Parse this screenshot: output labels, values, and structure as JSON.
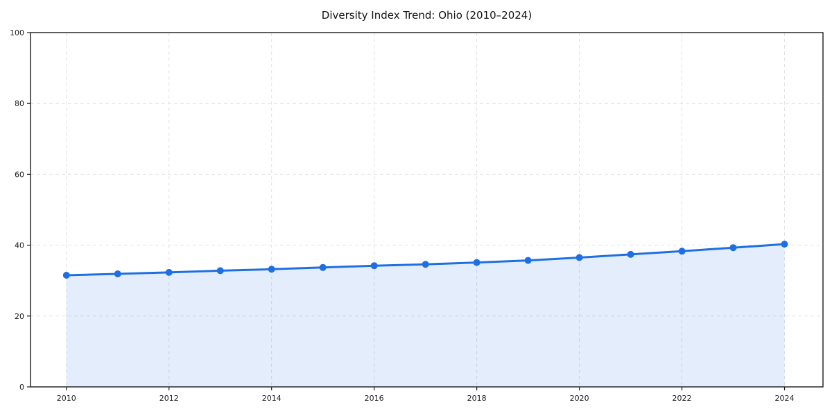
{
  "chart_data": {
    "type": "line",
    "title": "Diversity Index Trend: Ohio (2010–2024)",
    "xlabel": "",
    "ylabel": "",
    "x": [
      2010,
      2011,
      2012,
      2013,
      2014,
      2015,
      2016,
      2017,
      2018,
      2019,
      2020,
      2021,
      2022,
      2023,
      2024
    ],
    "series": [
      {
        "name": "Diversity Index",
        "values": [
          31.5,
          31.9,
          32.3,
          32.8,
          33.2,
          33.7,
          34.2,
          34.6,
          35.1,
          35.7,
          36.5,
          37.4,
          38.3,
          39.3,
          40.3
        ]
      }
    ],
    "xlim": [
      2009.3,
      2024.75
    ],
    "ylim": [
      0,
      100
    ],
    "xticks": [
      2010,
      2012,
      2014,
      2016,
      2018,
      2020,
      2022,
      2024
    ],
    "yticks": [
      0,
      20,
      40,
      60,
      80,
      100
    ],
    "grid": {
      "show": true,
      "style": "dashed",
      "color": "#e2e2e2"
    },
    "legend_position": "none",
    "area_fill": true,
    "styles": {
      "line_color": "#1E6FE3",
      "fill_color": "#1E6FE3",
      "fill_opacity": 0.12,
      "marker": "circle",
      "marker_radius": 5,
      "line_width": 3,
      "spine_color": "#1a1a1a",
      "tick_color": "#1a1a1a",
      "tick_label_color": "#1a1a1a",
      "background": "#ffffff"
    }
  }
}
